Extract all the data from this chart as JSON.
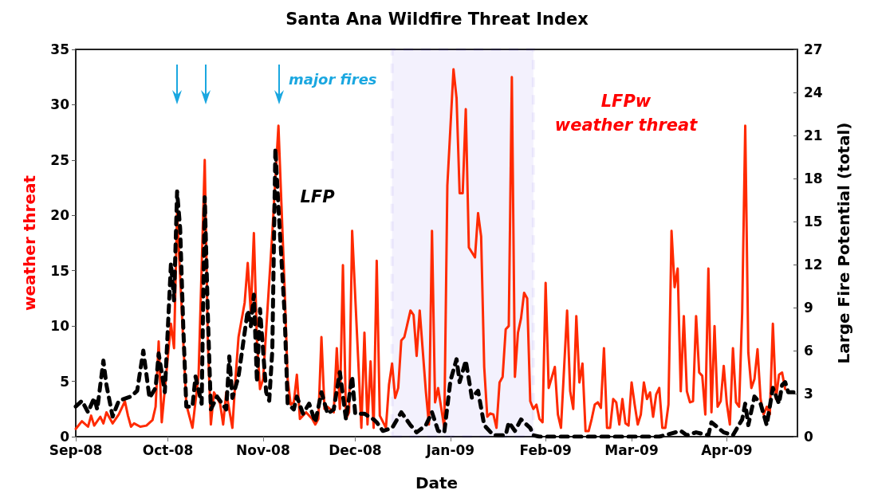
{
  "chart_data": {
    "type": "line",
    "title": "Santa Ana Wildfire Threat Index",
    "xlabel": "Date",
    "ylabel": "weather threat",
    "y2label": "Large Fire Potential (total)",
    "xlim": [
      "2008-09-01",
      "2009-04-24"
    ],
    "xticks": [
      {
        "value": "2008-09-01",
        "label": "Sep-08"
      },
      {
        "value": "2008-10-01",
        "label": "Oct-08"
      },
      {
        "value": "2008-11-01",
        "label": "Nov-08"
      },
      {
        "value": "2008-12-01",
        "label": "Dec-08"
      },
      {
        "value": "2009-01-01",
        "label": "Jan-09"
      },
      {
        "value": "2009-02-01",
        "label": "Feb-09"
      },
      {
        "value": "2009-03-01",
        "label": "Mar-09"
      },
      {
        "value": "2009-04-01",
        "label": "Apr-09"
      }
    ],
    "ylim": [
      0,
      35
    ],
    "yticks": [
      0,
      5,
      10,
      15,
      20,
      25,
      30,
      35
    ],
    "y2lim": [
      0,
      27
    ],
    "y2ticks": [
      0,
      3,
      6,
      9,
      12,
      15,
      18,
      21,
      24,
      27
    ],
    "grid": false,
    "annotations": [
      "major fires"
    ],
    "bands": [
      {
        "axis": "x",
        "from": "2008-12-13",
        "to": "2009-01-28",
        "color": "#2b10d8"
      }
    ],
    "series": [
      {
        "name": "LFPw\nweather threat",
        "color": "#ff2a00",
        "line_style": "solid",
        "x": [
          "2008-09-01",
          "2008-09-03",
          "2008-09-05",
          "2008-09-06",
          "2008-09-07",
          "2008-09-09",
          "2008-09-10",
          "2008-09-11",
          "2008-09-13",
          "2008-09-15",
          "2008-09-17",
          "2008-09-18",
          "2008-09-19",
          "2008-09-20",
          "2008-09-22",
          "2008-09-24",
          "2008-09-26",
          "2008-09-27",
          "2008-09-28",
          "2008-09-29",
          "2008-10-02",
          "2008-10-03",
          "2008-10-04",
          "2008-10-07",
          "2008-10-09",
          "2008-10-11",
          "2008-10-13",
          "2008-10-14",
          "2008-10-15",
          "2008-10-16",
          "2008-10-18",
          "2008-10-19",
          "2008-10-20",
          "2008-10-22",
          "2008-10-23",
          "2008-10-24",
          "2008-10-26",
          "2008-10-27",
          "2008-10-28",
          "2008-10-29",
          "2008-10-30",
          "2008-10-31",
          "2008-11-01",
          "2008-11-04",
          "2008-11-06",
          "2008-11-08",
          "2008-11-09",
          "2008-11-10",
          "2008-11-11",
          "2008-11-12",
          "2008-11-13",
          "2008-11-15",
          "2008-11-17",
          "2008-11-18",
          "2008-11-19",
          "2008-11-20",
          "2008-11-21",
          "2008-11-22",
          "2008-11-24",
          "2008-11-25",
          "2008-11-26",
          "2008-11-27",
          "2008-11-28",
          "2008-11-29",
          "2008-11-30",
          "2008-12-02",
          "2008-12-03",
          "2008-12-04",
          "2008-12-05",
          "2008-12-06",
          "2008-12-07",
          "2008-12-08",
          "2008-12-09",
          "2008-12-11",
          "2008-12-12",
          "2008-12-13",
          "2008-12-14",
          "2008-12-15",
          "2008-12-16",
          "2008-12-17",
          "2008-12-19",
          "2008-12-20",
          "2008-12-21",
          "2008-12-22",
          "2008-12-24",
          "2008-12-25",
          "2008-12-26",
          "2008-12-27",
          "2008-12-28",
          "2008-12-30",
          "2008-12-31",
          "2009-01-02",
          "2009-01-03",
          "2009-01-04",
          "2009-01-05",
          "2009-01-06",
          "2009-01-07",
          "2009-01-09",
          "2009-01-10",
          "2009-01-11",
          "2009-01-12",
          "2009-01-13",
          "2009-01-14",
          "2009-01-15",
          "2009-01-16",
          "2009-01-17",
          "2009-01-18",
          "2009-01-19",
          "2009-01-20",
          "2009-01-21",
          "2009-01-22",
          "2009-01-23",
          "2009-01-24",
          "2009-01-25",
          "2009-01-26",
          "2009-01-27",
          "2009-01-28",
          "2009-01-29",
          "2009-01-30",
          "2009-01-31",
          "2009-02-01",
          "2009-02-02",
          "2009-02-04",
          "2009-02-05",
          "2009-02-06",
          "2009-02-08",
          "2009-02-09",
          "2009-02-10",
          "2009-02-11",
          "2009-02-12",
          "2009-02-13",
          "2009-02-14",
          "2009-02-15",
          "2009-02-16",
          "2009-02-17",
          "2009-02-18",
          "2009-02-19",
          "2009-02-20",
          "2009-02-21",
          "2009-02-22",
          "2009-02-23",
          "2009-02-24",
          "2009-02-25",
          "2009-02-26",
          "2009-02-27",
          "2009-02-28",
          "2009-03-01",
          "2009-03-02",
          "2009-03-03",
          "2009-03-04",
          "2009-03-05",
          "2009-03-06",
          "2009-03-07",
          "2009-03-08",
          "2009-03-09",
          "2009-03-10",
          "2009-03-11",
          "2009-03-12",
          "2009-03-13",
          "2009-03-14",
          "2009-03-15",
          "2009-03-16",
          "2009-03-17",
          "2009-03-18",
          "2009-03-19",
          "2009-03-20",
          "2009-03-21",
          "2009-03-22",
          "2009-03-23",
          "2009-03-24",
          "2009-03-25",
          "2009-03-26",
          "2009-03-27",
          "2009-03-28",
          "2009-03-29",
          "2009-03-30",
          "2009-03-31",
          "2009-04-01",
          "2009-04-02",
          "2009-04-03",
          "2009-04-04",
          "2009-04-05",
          "2009-04-06",
          "2009-04-07",
          "2009-04-08",
          "2009-04-09",
          "2009-04-10",
          "2009-04-11",
          "2009-04-12",
          "2009-04-13",
          "2009-04-14",
          "2009-04-15",
          "2009-04-16",
          "2009-04-17",
          "2009-04-18",
          "2009-04-19",
          "2009-04-20"
        ],
        "values": [
          0.7,
          1.4,
          0.9,
          1.9,
          1.0,
          1.8,
          1.2,
          2.2,
          1.2,
          2.0,
          3.2,
          1.9,
          0.9,
          1.2,
          0.9,
          1.0,
          1.5,
          2.7,
          8.6,
          1.3,
          10.2,
          8.0,
          20.2,
          2.9,
          0.8,
          5.6,
          25.0,
          8.7,
          1.1,
          4.0,
          3.0,
          1.1,
          4.0,
          0.8,
          5.2,
          9.0,
          12.1,
          15.7,
          11.2,
          18.4,
          8.7,
          4.3,
          5.2,
          18.4,
          28.1,
          13.5,
          5.2,
          2.9,
          3.1,
          5.6,
          1.6,
          2.2,
          1.6,
          1.1,
          1.6,
          9.0,
          2.5,
          2.7,
          2.2,
          8.0,
          2.5,
          15.5,
          1.6,
          2.2,
          18.6,
          6.8,
          0.8,
          9.4,
          1.1,
          6.8,
          0.8,
          15.9,
          1.9,
          0.8,
          4.7,
          6.6,
          3.5,
          4.4,
          8.7,
          9.0,
          11.4,
          11.0,
          7.3,
          11.4,
          4.1,
          1.1,
          18.6,
          3.1,
          4.4,
          0.8,
          22.7,
          33.2,
          30.6,
          22.0,
          22.0,
          29.6,
          17.1,
          16.2,
          20.2,
          18.1,
          6.3,
          1.8,
          2.1,
          2.0,
          0.8,
          4.9,
          5.4,
          9.7,
          10.0,
          32.5,
          5.4,
          9.4,
          10.7,
          13.0,
          12.5,
          3.2,
          2.5,
          2.9,
          1.6,
          1.3,
          13.9,
          4.4,
          6.3,
          2.0,
          0.8,
          11.4,
          4.1,
          2.5,
          10.9,
          4.9,
          6.6,
          0.5,
          0.5,
          1.6,
          2.9,
          3.1,
          2.6,
          8.0,
          0.8,
          0.8,
          3.4,
          3.1,
          1.1,
          3.4,
          1.2,
          1.0,
          4.9,
          2.9,
          1.1,
          2.0,
          4.9,
          3.4,
          4.0,
          1.8,
          3.8,
          4.4,
          0.8,
          0.8,
          2.9,
          18.6,
          13.5,
          15.2,
          4.1,
          10.9,
          4.1,
          3.1,
          3.2,
          10.9,
          5.8,
          5.5,
          2.0,
          15.2,
          2.2,
          10.0,
          2.7,
          3.2,
          6.4,
          3.0,
          1.1,
          8.0,
          3.1,
          2.7,
          11.2,
          28.1,
          7.6,
          4.4,
          5.2,
          7.9,
          3.4,
          2.0,
          2.7,
          2.0,
          10.2,
          3.4,
          5.6,
          5.8,
          4.3
        ]
      },
      {
        "name": "LFP",
        "color": "#000000",
        "line_style": "dashed",
        "axis": "y2",
        "x": [
          "2008-09-01",
          "2008-09-03",
          "2008-09-05",
          "2008-09-07",
          "2008-09-08",
          "2008-09-10",
          "2008-09-11",
          "2008-09-13",
          "2008-09-15",
          "2008-09-19",
          "2008-09-21",
          "2008-09-23",
          "2008-09-25",
          "2008-09-27",
          "2008-09-28",
          "2008-09-30",
          "2008-10-02",
          "2008-10-03",
          "2008-10-04",
          "2008-10-05",
          "2008-10-06",
          "2008-10-07",
          "2008-10-09",
          "2008-10-10",
          "2008-10-12",
          "2008-10-13",
          "2008-10-14",
          "2008-10-15",
          "2008-10-17",
          "2008-10-20",
          "2008-10-21",
          "2008-10-22",
          "2008-10-24",
          "2008-10-27",
          "2008-10-28",
          "2008-10-29",
          "2008-10-30",
          "2008-10-31",
          "2008-11-02",
          "2008-11-03",
          "2008-11-04",
          "2008-11-05",
          "2008-11-06",
          "2008-11-08",
          "2008-11-09",
          "2008-11-11",
          "2008-11-12",
          "2008-11-14",
          "2008-11-16",
          "2008-11-18",
          "2008-11-20",
          "2008-11-22",
          "2008-11-24",
          "2008-11-26",
          "2008-11-28",
          "2008-11-30",
          "2008-12-01",
          "2008-12-04",
          "2008-12-07",
          "2008-12-08",
          "2008-12-10",
          "2008-12-13",
          "2008-12-16",
          "2008-12-19",
          "2008-12-21",
          "2008-12-24",
          "2008-12-26",
          "2008-12-28",
          "2008-12-30",
          "2009-01-01",
          "2009-01-03",
          "2009-01-04",
          "2009-01-06",
          "2009-01-08",
          "2009-01-10",
          "2009-01-12",
          "2009-01-15",
          "2009-01-19",
          "2009-01-20",
          "2009-01-22",
          "2009-01-24",
          "2009-01-27",
          "2009-01-28",
          "2009-01-30",
          "2009-02-15",
          "2009-03-01",
          "2009-03-10",
          "2009-03-17",
          "2009-03-19",
          "2009-03-22",
          "2009-03-26",
          "2009-03-27",
          "2009-03-31",
          "2009-04-03",
          "2009-04-06",
          "2009-04-07",
          "2009-04-08",
          "2009-04-10",
          "2009-04-12",
          "2009-04-14",
          "2009-04-16",
          "2009-04-18",
          "2009-04-19",
          "2009-04-20",
          "2009-04-21",
          "2009-04-23"
        ],
        "values": [
          2.1,
          2.5,
          1.7,
          2.7,
          1.9,
          5.3,
          3.6,
          1.4,
          2.5,
          2.8,
          3.2,
          6.0,
          2.7,
          3.4,
          5.8,
          3.1,
          12.1,
          9.5,
          17.1,
          14.5,
          7.7,
          2.1,
          2.1,
          4.2,
          2.3,
          16.7,
          8.6,
          1.9,
          2.8,
          1.9,
          5.6,
          2.7,
          4.2,
          8.8,
          7.7,
          9.9,
          3.8,
          8.9,
          3.1,
          2.5,
          6.0,
          20.1,
          16.0,
          8.6,
          2.3,
          1.9,
          2.8,
          1.6,
          2.3,
          1.0,
          3.1,
          1.6,
          1.9,
          4.5,
          1.2,
          4.2,
          1.6,
          1.6,
          1.2,
          1.0,
          0.4,
          0.6,
          1.7,
          0.8,
          0.3,
          0.8,
          1.7,
          0.4,
          0.3,
          3.9,
          5.4,
          3.8,
          5.3,
          2.7,
          3.2,
          0.8,
          0.1,
          0.1,
          1.0,
          0.4,
          1.2,
          0.6,
          0.1,
          0,
          0,
          0,
          0,
          0.4,
          0.1,
          0.3,
          0.1,
          1.0,
          0.3,
          0.1,
          1.2,
          2.3,
          0.8,
          2.8,
          2.3,
          0.8,
          3.4,
          2.3,
          3.6,
          3.8,
          3.1,
          3.1
        ]
      }
    ]
  }
}
